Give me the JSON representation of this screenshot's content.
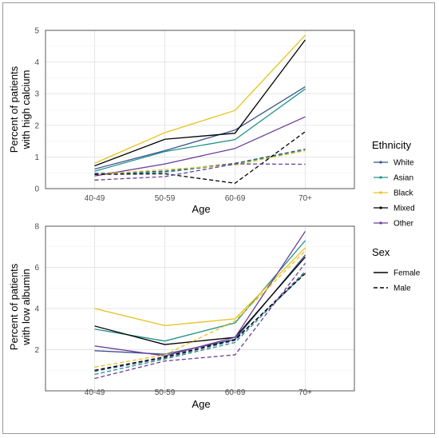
{
  "chart_data": [
    {
      "type": "line",
      "categories": [
        "40-49",
        "50-59",
        "60-69",
        "70+"
      ],
      "xlabel": "Age",
      "ylabel": [
        "Percent of patients",
        "with high calcium"
      ],
      "ylim": [
        0,
        5
      ],
      "yticks": [
        0,
        1,
        2,
        3,
        4,
        5
      ],
      "grid": true,
      "series": [
        {
          "ethnicity": "White",
          "sex": "Female",
          "values": [
            0.62,
            1.2,
            1.85,
            3.22
          ]
        },
        {
          "ethnicity": "Asian",
          "sex": "Female",
          "values": [
            0.55,
            1.17,
            1.55,
            3.15
          ]
        },
        {
          "ethnicity": "Black",
          "sex": "Female",
          "values": [
            0.8,
            1.77,
            2.47,
            4.85
          ]
        },
        {
          "ethnicity": "Mixed",
          "sex": "Female",
          "values": [
            0.72,
            1.56,
            1.75,
            4.7
          ]
        },
        {
          "ethnicity": "Other",
          "sex": "Female",
          "values": [
            0.4,
            0.78,
            1.27,
            2.27
          ]
        },
        {
          "ethnicity": "White",
          "sex": "Male",
          "values": [
            0.48,
            0.55,
            0.8,
            1.25
          ]
        },
        {
          "ethnicity": "Asian",
          "sex": "Male",
          "values": [
            0.45,
            0.52,
            0.78,
            1.22
          ]
        },
        {
          "ethnicity": "Black",
          "sex": "Male",
          "values": [
            0.45,
            0.6,
            0.75,
            1.2
          ]
        },
        {
          "ethnicity": "Mixed",
          "sex": "Male",
          "values": [
            0.45,
            0.47,
            0.17,
            1.8
          ]
        },
        {
          "ethnicity": "Other",
          "sex": "Male",
          "values": [
            0.27,
            0.38,
            0.78,
            0.77
          ]
        }
      ]
    },
    {
      "type": "line",
      "categories": [
        "40-49",
        "50-59",
        "60-69",
        "70+"
      ],
      "xlabel": "Age",
      "ylabel": [
        "Percent of patients",
        "with low albumin"
      ],
      "ylim": [
        0,
        8
      ],
      "yticks": [
        2,
        4,
        6,
        8
      ],
      "grid": true,
      "series": [
        {
          "ethnicity": "White",
          "sex": "Female",
          "values": [
            1.95,
            1.78,
            2.5,
            6.6
          ]
        },
        {
          "ethnicity": "Asian",
          "sex": "Female",
          "values": [
            3.0,
            2.42,
            3.3,
            7.3
          ]
        },
        {
          "ethnicity": "Black",
          "sex": "Female",
          "values": [
            4.0,
            3.17,
            3.5,
            6.95
          ]
        },
        {
          "ethnicity": "Mixed",
          "sex": "Female",
          "values": [
            3.15,
            2.25,
            2.6,
            6.5
          ]
        },
        {
          "ethnicity": "Other",
          "sex": "Female",
          "values": [
            2.18,
            1.7,
            2.6,
            7.75
          ]
        },
        {
          "ethnicity": "White",
          "sex": "Male",
          "values": [
            0.95,
            1.6,
            2.45,
            5.8
          ]
        },
        {
          "ethnicity": "Asian",
          "sex": "Male",
          "values": [
            0.8,
            1.55,
            2.35,
            5.75
          ]
        },
        {
          "ethnicity": "Black",
          "sex": "Male",
          "values": [
            1.15,
            1.75,
            3.4,
            6.8
          ]
        },
        {
          "ethnicity": "Mixed",
          "sex": "Male",
          "values": [
            1.0,
            1.65,
            2.5,
            5.7
          ]
        },
        {
          "ethnicity": "Other",
          "sex": "Male",
          "values": [
            0.6,
            1.45,
            1.75,
            6.2
          ]
        }
      ]
    }
  ],
  "legend": {
    "ethnicity_title": "Ethnicity",
    "ethnicity": [
      {
        "name": "White",
        "color": "#3b528b"
      },
      {
        "name": "Asian",
        "color": "#21918c"
      },
      {
        "name": "Black",
        "color": "#e8c21c"
      },
      {
        "name": "Mixed",
        "color": "#000000"
      },
      {
        "name": "Other",
        "color": "#6a3d9a"
      }
    ],
    "sex_title": "Sex",
    "sex": [
      {
        "name": "Female",
        "dash": "solid"
      },
      {
        "name": "Male",
        "dash": "dashed"
      }
    ],
    "placement": "right"
  }
}
